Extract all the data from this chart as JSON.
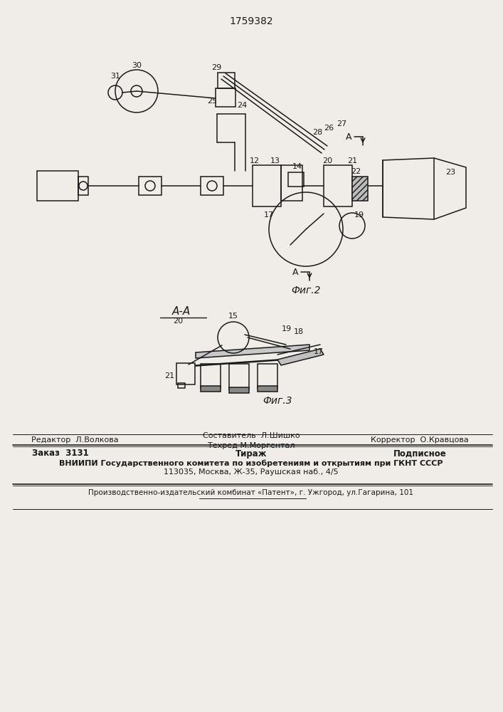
{
  "patent_number": "1759382",
  "background_color": "#f0ede8",
  "line_color": "#1a1a1a",
  "fig2_caption": "Фиг.2",
  "fig3_caption": "Фиг.3",
  "aa_label": "A-A",
  "footer_line1_left": "Редактор  Л.Волкова",
  "footer_line1_center": "Составитель  Л.Шишко",
  "footer_line2_center": "Техред М.Моргентал",
  "footer_line1_right": "Корректор  О.Кравцова",
  "footer_order": "Заказ  3131",
  "footer_tirazh": "Тираж",
  "footer_podpisnoe": "Подписное",
  "footer_vniipи": "ВНИИПИ Государственного комитета по изобретениям и открытиям при ГКНТ СССР",
  "footer_address": "113035, Москва, Ж-35, Раушская наб., 4/5",
  "footer_patent": "Производственно-издательский комбинат «Патент», г. Ужгород, ул.Гагарина, 101"
}
